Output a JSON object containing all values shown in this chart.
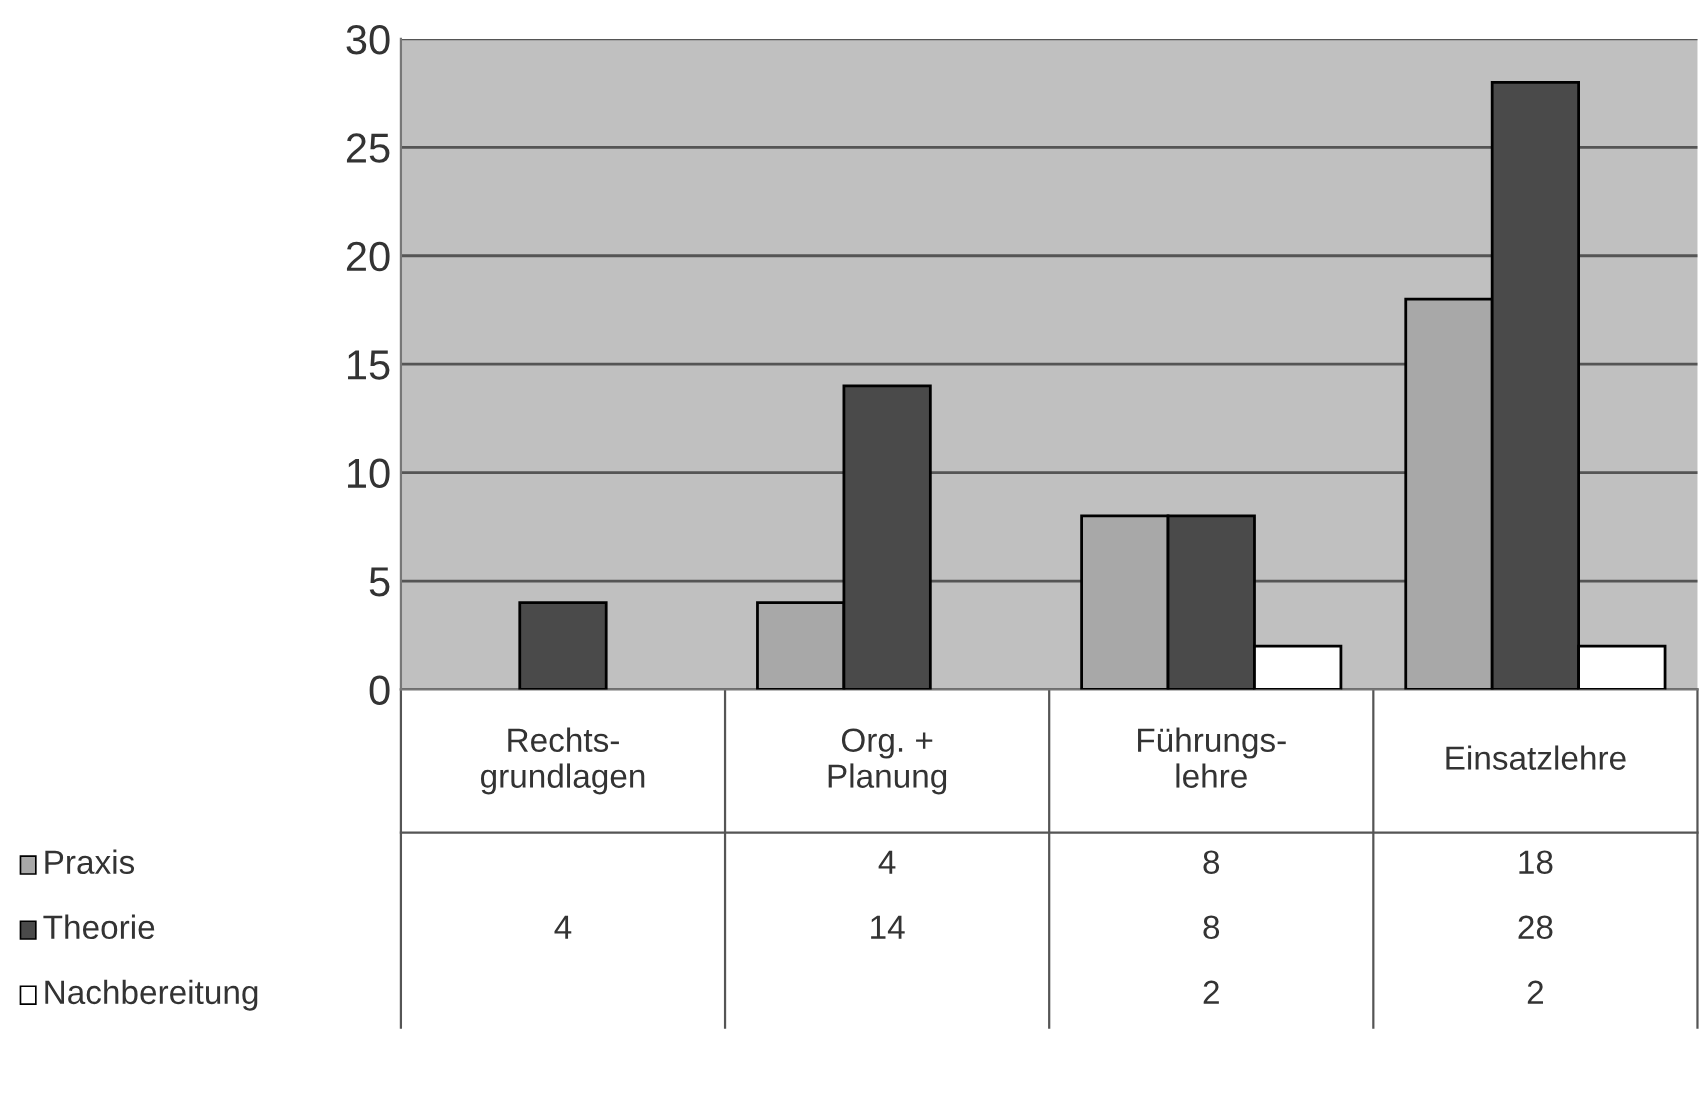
{
  "chart_data": {
    "type": "bar",
    "categories": [
      "Rechts-\ngrundlagen",
      "Org. +\nPlanung",
      "Führungs-\nlehre",
      "Einsatzlehre"
    ],
    "series": [
      {
        "name": "Praxis",
        "color": "#a8a8a8",
        "values": [
          null,
          4,
          8,
          18
        ]
      },
      {
        "name": "Theorie",
        "color": "#4a4a4a",
        "values": [
          4,
          14,
          8,
          28
        ]
      },
      {
        "name": "Nachbereitung",
        "color": "#ffffff",
        "values": [
          null,
          null,
          2,
          2
        ]
      }
    ],
    "ylim": [
      0,
      30
    ],
    "yticks": [
      0,
      5,
      10,
      15,
      20,
      25,
      30
    ],
    "grid": "y",
    "data_labels": true,
    "legend": "bottom left"
  }
}
